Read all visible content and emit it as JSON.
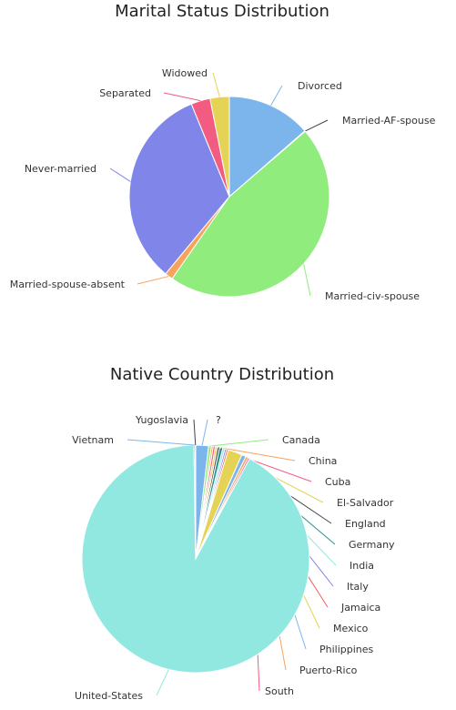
{
  "chart_data": [
    {
      "type": "pie",
      "title": "Marital Status Distribution",
      "slices": [
        {
          "label": "Divorced",
          "value": 13.6,
          "color": "#7cb5ec"
        },
        {
          "label": "Married-AF-spouse",
          "value": 0.1,
          "color": "#434348"
        },
        {
          "label": "Married-civ-spouse",
          "value": 46.0,
          "color": "#90ed7d"
        },
        {
          "label": "Married-spouse-absent",
          "value": 1.3,
          "color": "#f7a35c"
        },
        {
          "label": "Never-married",
          "value": 32.8,
          "color": "#8085e9"
        },
        {
          "label": "Separated",
          "value": 3.1,
          "color": "#f15c80"
        },
        {
          "label": "Widowed",
          "value": 3.1,
          "color": "#e4d354"
        }
      ]
    },
    {
      "type": "pie",
      "title": "Native Country Distribution",
      "slices": [
        {
          "label": "?",
          "value": 1.8,
          "color": "#7cb5ec"
        },
        {
          "label": "Canada",
          "value": 0.4,
          "color": "#90ed7d"
        },
        {
          "label": "China",
          "value": 0.25,
          "color": "#f7a35c"
        },
        {
          "label": "Cuba",
          "value": 0.3,
          "color": "#f15c80"
        },
        {
          "label": "El-Salvador",
          "value": 0.3,
          "color": "#e4d354"
        },
        {
          "label": "England",
          "value": 0.3,
          "color": "#434348"
        },
        {
          "label": "Germany",
          "value": 0.45,
          "color": "#2b908f"
        },
        {
          "label": "India",
          "value": 0.3,
          "color": "#91e8e1"
        },
        {
          "label": "Italy",
          "value": 0.25,
          "color": "#8085e9"
        },
        {
          "label": "Jamaica",
          "value": 0.25,
          "color": "#f45b5b"
        },
        {
          "label": "Mexico",
          "value": 2.0,
          "color": "#e4d354"
        },
        {
          "label": "Philippines",
          "value": 0.6,
          "color": "#7cb5ec"
        },
        {
          "label": "Puerto-Rico",
          "value": 0.35,
          "color": "#f7a35c"
        },
        {
          "label": "South",
          "value": 0.25,
          "color": "#f15c80"
        },
        {
          "label": "United-States",
          "value": 91.2,
          "color": "#91e8e1"
        },
        {
          "label": "Vietnam",
          "value": 0.2,
          "color": "#7cb5ec"
        },
        {
          "label": "Yugoslavia",
          "value": 0.05,
          "color": "#434348"
        }
      ]
    }
  ]
}
